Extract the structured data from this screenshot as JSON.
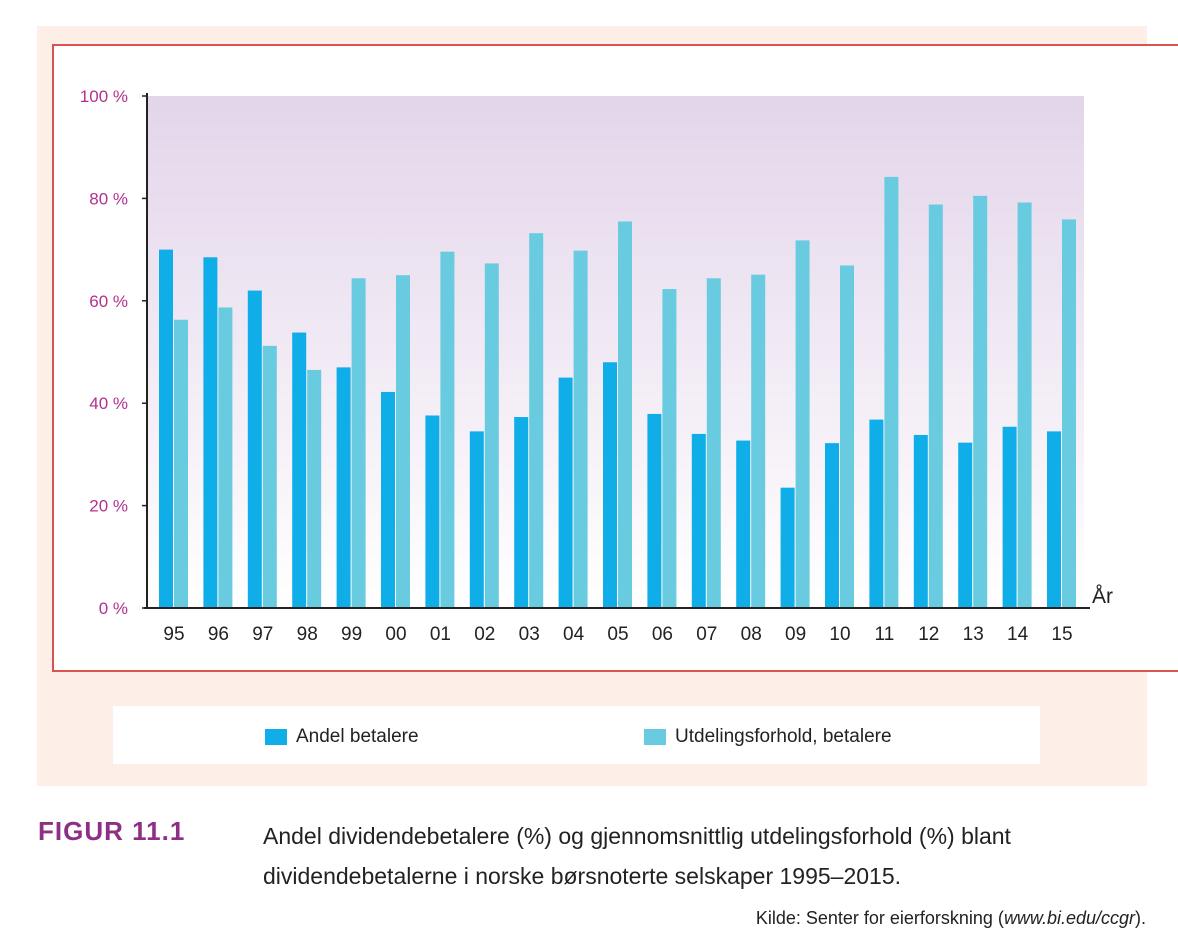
{
  "colors": {
    "series1": "#10aee8",
    "series2": "#69cbe0",
    "tick_label": "#b2308f",
    "caption_label": "#8e2f86",
    "frame": "#d9534f",
    "panel_bg": "#fdeee8",
    "plot_bg_top": "#e3d5ea",
    "plot_bg_bottom": "#ffffff"
  },
  "chart_data": {
    "type": "bar",
    "title": "",
    "xlabel": "År",
    "ylabel": "",
    "ylim": [
      0,
      100
    ],
    "yticks": [
      0,
      20,
      40,
      60,
      80,
      100
    ],
    "ytick_labels": [
      "0 %",
      "20 %",
      "40 %",
      "60 %",
      "80 %",
      "100 %"
    ],
    "categories": [
      "95",
      "96",
      "97",
      "98",
      "99",
      "00",
      "01",
      "02",
      "03",
      "04",
      "05",
      "06",
      "07",
      "08",
      "09",
      "10",
      "11",
      "12",
      "13",
      "14",
      "15"
    ],
    "series": [
      {
        "name": "Andel betalere",
        "values": [
          70,
          68.5,
          62,
          53.8,
          47,
          42.2,
          37.6,
          34.5,
          37.3,
          45,
          48,
          37.9,
          34,
          32.7,
          23.5,
          32.2,
          36.8,
          33.8,
          32.3,
          35.4,
          34.5
        ]
      },
      {
        "name": "Utdelingsforhold, betalere",
        "values": [
          56.3,
          58.7,
          51.2,
          46.5,
          64.4,
          65,
          69.6,
          67.3,
          73.2,
          69.8,
          75.5,
          62.3,
          64.4,
          65.1,
          71.8,
          66.9,
          84.2,
          78.8,
          80.5,
          79.2,
          75.9
        ]
      }
    ],
    "grid": false,
    "legend_position": "bottom"
  },
  "caption": {
    "label": "FIGUR 11.1",
    "text": "Andel dividendebetalere (%) og gjennomsnittlig utdelingsforhold (%) blant dividendebetalerne i norske børsnoterte selskaper 1995–2015."
  },
  "source": {
    "prefix": "Kilde: Senter for eierforskning (",
    "url": "www.bi.edu/ccgr",
    "suffix": ")."
  }
}
